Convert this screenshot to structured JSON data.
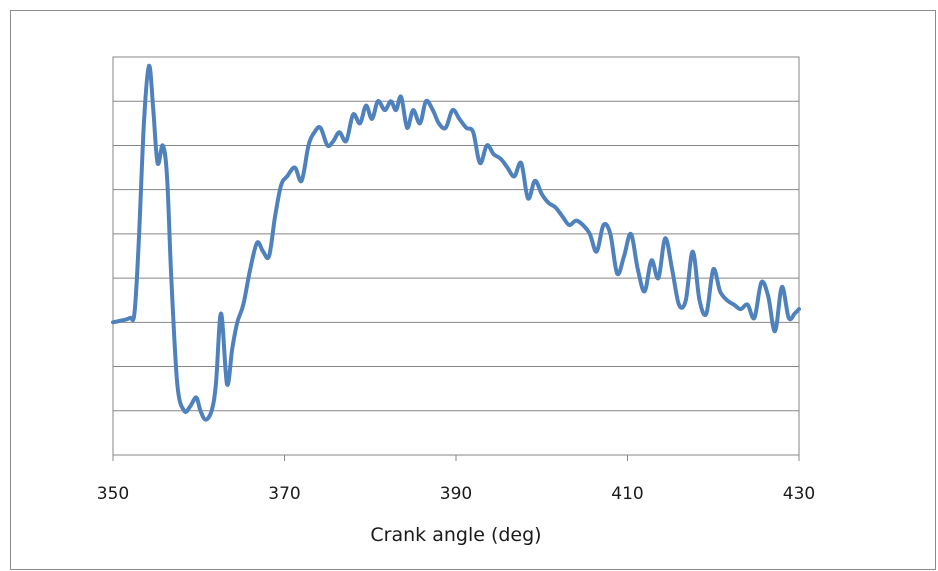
{
  "chart_data": {
    "type": "line",
    "title": "",
    "xlabel": "Crank angle (deg)",
    "ylabel": "",
    "xlim": [
      350,
      430
    ],
    "x_ticks": [
      350,
      370,
      390,
      410,
      430
    ],
    "x_tick_labels": [
      "350",
      "370",
      "390",
      "410",
      "430"
    ],
    "y_gridline_count": 9,
    "y_tick_labels_shown": false,
    "grid": "horizontal",
    "legend": "none",
    "series": [
      {
        "color": "#4F81BD",
        "points": [
          [
            350.0,
            2.0
          ],
          [
            351.2,
            2.05
          ],
          [
            352.0,
            2.1
          ],
          [
            352.5,
            2.2
          ],
          [
            353.0,
            3.8
          ],
          [
            353.6,
            6.5
          ],
          [
            354.2,
            7.8
          ],
          [
            354.7,
            6.8
          ],
          [
            355.2,
            5.6
          ],
          [
            355.8,
            6.0
          ],
          [
            356.3,
            5.3
          ],
          [
            356.8,
            3.0
          ],
          [
            357.5,
            0.6
          ],
          [
            358.3,
            0.0
          ],
          [
            359.0,
            0.1
          ],
          [
            359.7,
            0.3
          ],
          [
            360.2,
            0.0
          ],
          [
            360.8,
            -0.2
          ],
          [
            361.5,
            0.0
          ],
          [
            362.0,
            0.6
          ],
          [
            362.6,
            2.2
          ],
          [
            363.3,
            0.6
          ],
          [
            363.9,
            1.4
          ],
          [
            364.5,
            2.0
          ],
          [
            365.2,
            2.4
          ],
          [
            366.0,
            3.2
          ],
          [
            366.8,
            3.8
          ],
          [
            367.5,
            3.6
          ],
          [
            368.2,
            3.5
          ],
          [
            368.9,
            4.4
          ],
          [
            369.6,
            5.1
          ],
          [
            370.3,
            5.3
          ],
          [
            371.2,
            5.5
          ],
          [
            372.0,
            5.2
          ],
          [
            372.8,
            6.0
          ],
          [
            373.5,
            6.3
          ],
          [
            374.2,
            6.4
          ],
          [
            375.0,
            6.0
          ],
          [
            375.7,
            6.1
          ],
          [
            376.4,
            6.3
          ],
          [
            377.2,
            6.1
          ],
          [
            378.0,
            6.7
          ],
          [
            378.8,
            6.5
          ],
          [
            379.5,
            6.9
          ],
          [
            380.2,
            6.6
          ],
          [
            380.9,
            7.0
          ],
          [
            381.7,
            6.8
          ],
          [
            382.4,
            7.0
          ],
          [
            383.0,
            6.8
          ],
          [
            383.6,
            7.1
          ],
          [
            384.3,
            6.4
          ],
          [
            385.0,
            6.8
          ],
          [
            385.8,
            6.5
          ],
          [
            386.5,
            7.0
          ],
          [
            387.3,
            6.8
          ],
          [
            388.0,
            6.5
          ],
          [
            388.8,
            6.4
          ],
          [
            389.6,
            6.8
          ],
          [
            390.4,
            6.6
          ],
          [
            391.2,
            6.4
          ],
          [
            392.0,
            6.3
          ],
          [
            392.8,
            5.6
          ],
          [
            393.6,
            6.0
          ],
          [
            394.4,
            5.8
          ],
          [
            395.2,
            5.7
          ],
          [
            396.0,
            5.5
          ],
          [
            396.8,
            5.3
          ],
          [
            397.6,
            5.6
          ],
          [
            398.4,
            4.8
          ],
          [
            399.2,
            5.2
          ],
          [
            400.0,
            4.9
          ],
          [
            400.8,
            4.7
          ],
          [
            401.6,
            4.6
          ],
          [
            402.4,
            4.4
          ],
          [
            403.2,
            4.2
          ],
          [
            404.0,
            4.3
          ],
          [
            404.8,
            4.2
          ],
          [
            405.6,
            4.0
          ],
          [
            406.4,
            3.6
          ],
          [
            407.2,
            4.2
          ],
          [
            408.0,
            4.0
          ],
          [
            408.8,
            3.1
          ],
          [
            409.6,
            3.5
          ],
          [
            410.4,
            4.0
          ],
          [
            411.2,
            3.2
          ],
          [
            412.0,
            2.7
          ],
          [
            412.8,
            3.4
          ],
          [
            413.6,
            3.0
          ],
          [
            414.4,
            3.9
          ],
          [
            415.2,
            3.2
          ],
          [
            416.0,
            2.4
          ],
          [
            416.8,
            2.5
          ],
          [
            417.6,
            3.6
          ],
          [
            418.4,
            2.5
          ],
          [
            419.2,
            2.2
          ],
          [
            420.0,
            3.2
          ],
          [
            420.8,
            2.7
          ],
          [
            421.6,
            2.5
          ],
          [
            422.4,
            2.4
          ],
          [
            423.2,
            2.3
          ],
          [
            424.0,
            2.4
          ],
          [
            424.8,
            2.1
          ],
          [
            425.6,
            2.9
          ],
          [
            426.4,
            2.6
          ],
          [
            427.2,
            1.8
          ],
          [
            428.0,
            2.8
          ],
          [
            428.8,
            2.1
          ],
          [
            429.5,
            2.2
          ],
          [
            430.0,
            2.3
          ]
        ]
      }
    ]
  }
}
